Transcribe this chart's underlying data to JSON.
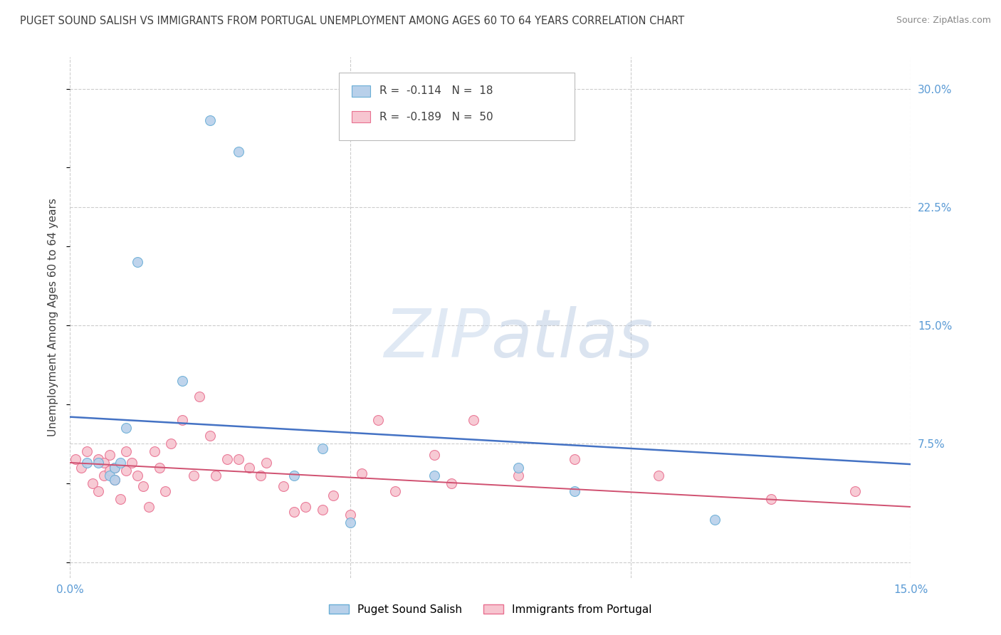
{
  "title": "PUGET SOUND SALISH VS IMMIGRANTS FROM PORTUGAL UNEMPLOYMENT AMONG AGES 60 TO 64 YEARS CORRELATION CHART",
  "source": "Source: ZipAtlas.com",
  "ylabel": "Unemployment Among Ages 60 to 64 years",
  "xlim": [
    0.0,
    0.15
  ],
  "ylim": [
    -0.01,
    0.32
  ],
  "yticks_right": [
    0.0,
    0.075,
    0.15,
    0.225,
    0.3
  ],
  "series1_name": "Puget Sound Salish",
  "series1_R": -0.114,
  "series1_N": 18,
  "series1_color": "#b8d0ea",
  "series1_edge_color": "#6aaed6",
  "series2_name": "Immigrants from Portugal",
  "series2_R": -0.189,
  "series2_N": 50,
  "series2_color": "#f7c5d0",
  "series2_edge_color": "#e87090",
  "trend1_color": "#4472c4",
  "trend2_color": "#d05070",
  "background_color": "#ffffff",
  "grid_color": "#cccccc",
  "title_color": "#404040",
  "axis_label_color": "#5b9bd5",
  "series1_x": [
    0.003,
    0.005,
    0.007,
    0.008,
    0.008,
    0.009,
    0.01,
    0.012,
    0.02,
    0.025,
    0.03,
    0.04,
    0.045,
    0.05,
    0.065,
    0.08,
    0.09,
    0.115
  ],
  "series1_y": [
    0.063,
    0.063,
    0.055,
    0.052,
    0.06,
    0.063,
    0.085,
    0.19,
    0.115,
    0.28,
    0.26,
    0.055,
    0.072,
    0.025,
    0.055,
    0.06,
    0.045,
    0.027
  ],
  "series2_x": [
    0.001,
    0.002,
    0.003,
    0.004,
    0.005,
    0.005,
    0.006,
    0.006,
    0.007,
    0.007,
    0.008,
    0.008,
    0.009,
    0.01,
    0.01,
    0.011,
    0.012,
    0.013,
    0.014,
    0.015,
    0.016,
    0.017,
    0.018,
    0.02,
    0.022,
    0.023,
    0.025,
    0.026,
    0.028,
    0.03,
    0.032,
    0.034,
    0.035,
    0.038,
    0.04,
    0.042,
    0.045,
    0.047,
    0.05,
    0.052,
    0.055,
    0.058,
    0.065,
    0.068,
    0.072,
    0.08,
    0.09,
    0.105,
    0.125,
    0.14
  ],
  "series2_y": [
    0.065,
    0.06,
    0.07,
    0.05,
    0.065,
    0.045,
    0.063,
    0.055,
    0.068,
    0.058,
    0.06,
    0.052,
    0.04,
    0.07,
    0.058,
    0.063,
    0.055,
    0.048,
    0.035,
    0.07,
    0.06,
    0.045,
    0.075,
    0.09,
    0.055,
    0.105,
    0.08,
    0.055,
    0.065,
    0.065,
    0.06,
    0.055,
    0.063,
    0.048,
    0.032,
    0.035,
    0.033,
    0.042,
    0.03,
    0.056,
    0.09,
    0.045,
    0.068,
    0.05,
    0.09,
    0.055,
    0.065,
    0.055,
    0.04,
    0.045
  ],
  "trend1_x0": 0.0,
  "trend1_y0": 0.092,
  "trend1_x1": 0.15,
  "trend1_y1": 0.062,
  "trend2_x0": 0.0,
  "trend2_y0": 0.063,
  "trend2_x1": 0.15,
  "trend2_y1": 0.035
}
